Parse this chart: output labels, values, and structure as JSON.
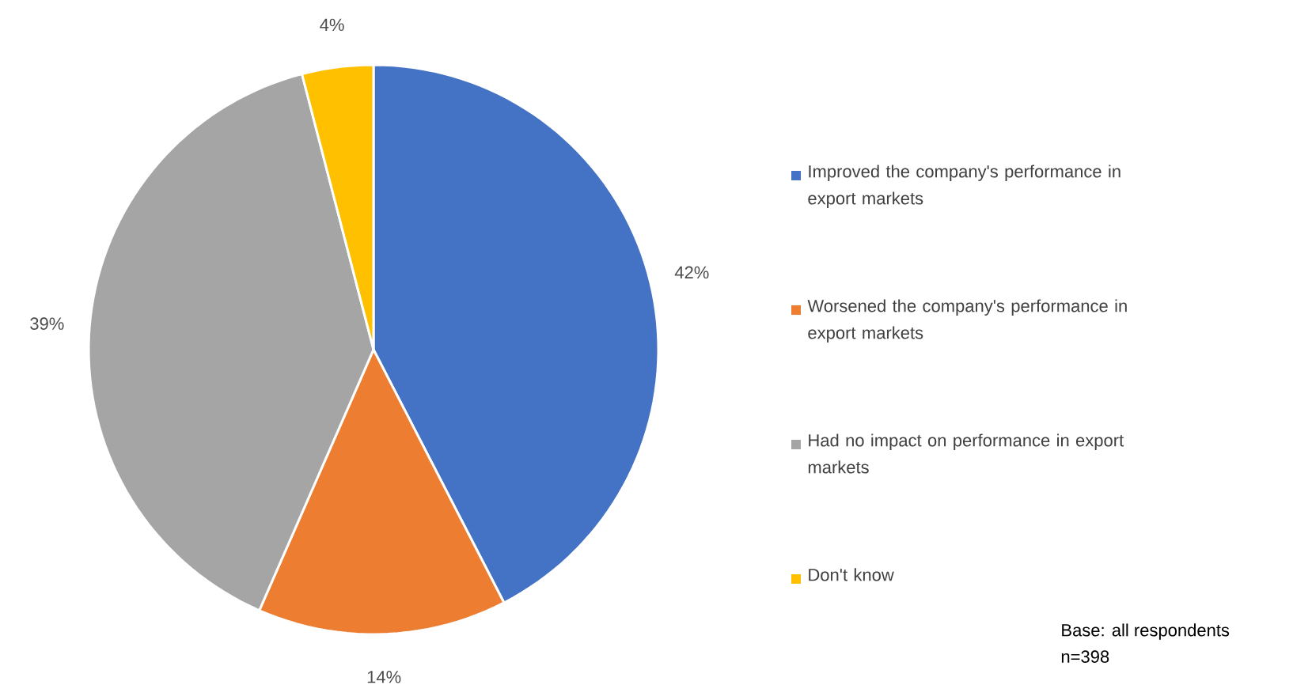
{
  "chart_data": {
    "type": "pie",
    "categories": [
      "Improved the company's performance in export markets",
      "Worsened the company's performance in export markets",
      "Had no impact on performance in export markets",
      "Don't know"
    ],
    "values": [
      42,
      14,
      39,
      4
    ],
    "colors": [
      "#4472c4",
      "#ed7d31",
      "#a5a5a5",
      "#ffc000"
    ],
    "value_labels": [
      "42%",
      "14%",
      "39%",
      "4%"
    ],
    "legend": "right",
    "annotations": [
      "Base: all respondents",
      "n=398"
    ]
  }
}
